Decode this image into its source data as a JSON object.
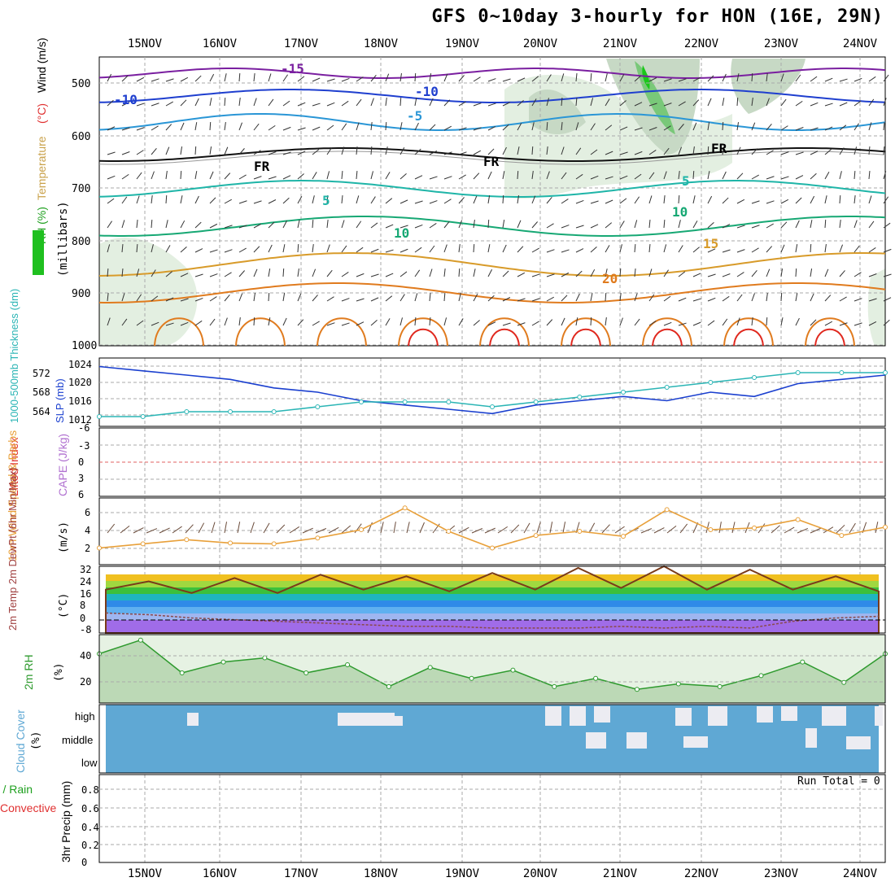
{
  "title": "GFS 0~10day 3-hourly for HON (16E, 29N)",
  "dates": [
    "15NOV",
    "16NOV",
    "17NOV",
    "18NOV",
    "19NOV",
    "20NOV",
    "21NOV",
    "22NOV",
    "23NOV",
    "24NOV"
  ],
  "panels": {
    "upper": {
      "ylabels": [
        {
          "text": "RH (%)",
          "color": "#1fa01f"
        },
        {
          "text": "Temperature",
          "color": "#c9a14a"
        },
        {
          "text": "(°C)",
          "color": "#e03030"
        },
        {
          "text": "Wind (m/s)",
          "color": "#000000"
        }
      ],
      "unit_label": "(millibars)",
      "yticks": [
        "500",
        "600",
        "700",
        "800",
        "900",
        "1000"
      ],
      "contour_labels": [
        "-15",
        "-10",
        "-10",
        "-5",
        "FR",
        "FR",
        "FR",
        "5",
        "5",
        "10",
        "10",
        "15",
        "20"
      ]
    },
    "thickness": {
      "ylabel_left": "1000-500mb Thickness (dm)",
      "ylabel_right": "SLP (mb)",
      "left_ticks": [
        "572",
        "568",
        "564"
      ],
      "right_ticks": [
        "1024",
        "1020",
        "1016",
        "1012"
      ]
    },
    "cape": {
      "ylabel_left": "Lifted Index",
      "ylabel_right": "CAPE (J/kg)",
      "ticks": [
        "-6",
        "-3",
        "0",
        "3",
        "6"
      ]
    },
    "wind10m": {
      "ylabel": "10m Wind Speed & Barbs",
      "unit": "(m/s)",
      "ticks": [
        "6",
        "4",
        "2"
      ]
    },
    "temp2m": {
      "ylabel": "2m Temp 2m DewPt (6hr Min/Max)",
      "unit": "(°C)",
      "ticks": [
        "32",
        "24",
        "16",
        "8",
        "0",
        "-8"
      ]
    },
    "rh2m": {
      "ylabel": "2m RH",
      "unit": "(%)",
      "ticks": [
        "40",
        "20"
      ]
    },
    "cloud": {
      "ylabel": "Cloud Cover",
      "unit": "(%)",
      "levels": [
        "high",
        "middle",
        "low"
      ]
    },
    "precip": {
      "ylabel_left": "Total / Rain",
      "ylabel_left2": "Convective",
      "ylabel": "3hr Precip (mm)",
      "ticks": [
        "0.8",
        "0.6",
        "0.4",
        "0.2",
        "0"
      ],
      "run_total": "Run Total = 0"
    }
  },
  "colors": {
    "slp": "#1a3fcf",
    "thickness": "#2bb5b5",
    "wind10m": "#e8a03a",
    "rh": "#2e9a2e",
    "cloud": "#5fa8d4",
    "grid": "#9a9a9a"
  },
  "chart_data": [
    {
      "type": "line",
      "title": "SLP / 1000-500mb Thickness",
      "x": [
        "15NOV",
        "15.5",
        "16NOV",
        "16.5",
        "17NOV",
        "17.5",
        "18NOV",
        "18.5",
        "19NOV",
        "19.5",
        "20NOV",
        "20.5",
        "21NOV",
        "21.5",
        "22NOV",
        "22.5",
        "23NOV",
        "23.5",
        "24NOV"
      ],
      "series": [
        {
          "name": "SLP (mb)",
          "values": [
            1024,
            1023,
            1022,
            1021,
            1019,
            1018,
            1016,
            1015,
            1014,
            1013,
            1015,
            1016,
            1017,
            1016,
            1018,
            1017,
            1020,
            1021,
            1022
          ]
        },
        {
          "name": "1000-500mb Thickness (dm)",
          "values": [
            563,
            563,
            564,
            564,
            564,
            565,
            566,
            566,
            566,
            565,
            566,
            567,
            568,
            569,
            570,
            571,
            572,
            572,
            572
          ]
        }
      ]
    },
    {
      "type": "line",
      "title": "10m Wind Speed",
      "ylabel": "(m/s)",
      "x": [
        "15NOV",
        "15.5",
        "16NOV",
        "16.5",
        "17NOV",
        "17.5",
        "18NOV",
        "18.5",
        "19NOV",
        "19.5",
        "20NOV",
        "20.5",
        "21NOV",
        "21.5",
        "22NOV",
        "22.5",
        "23NOV",
        "23.5",
        "24NOV"
      ],
      "series": [
        {
          "name": "10m Wind",
          "values": [
            2,
            2.5,
            3,
            2.6,
            2.5,
            3.2,
            4.2,
            6.8,
            4.0,
            2.0,
            3.5,
            4.0,
            3.4,
            6.6,
            4.2,
            4.4,
            5.4,
            3.5,
            4.5
          ]
        }
      ],
      "ylim": [
        0,
        8
      ]
    },
    {
      "type": "area",
      "title": "2m Temp / DewPt",
      "ylabel": "(°C)",
      "x": [
        "15NOV",
        "15.5",
        "16NOV",
        "16.5",
        "17NOV",
        "17.5",
        "18NOV",
        "18.5",
        "19NOV",
        "19.5",
        "20NOV",
        "20.5",
        "21NOV",
        "21.5",
        "22NOV",
        "22.5",
        "23NOV",
        "23.5",
        "24NOV"
      ],
      "series": [
        {
          "name": "2m Temp",
          "values": [
            18,
            23,
            16,
            25,
            16,
            27,
            18,
            26,
            17,
            28,
            18,
            31,
            19,
            32,
            18,
            30,
            18,
            26,
            17
          ]
        },
        {
          "name": "2m DewPt",
          "values": [
            4,
            3,
            1,
            0,
            -1,
            -2,
            -3,
            -4,
            -4,
            -5,
            -5,
            -5,
            -4,
            -5,
            -4,
            -5,
            -1,
            1,
            2
          ]
        }
      ],
      "ylim": [
        -8,
        32
      ]
    },
    {
      "type": "area",
      "title": "2m RH",
      "ylabel": "(%)",
      "x": [
        "15NOV",
        "15.2",
        "15.5",
        "16NOV",
        "16.5",
        "17NOV",
        "17.5",
        "18NOV",
        "18.5",
        "19NOV",
        "19.5",
        "20NOV",
        "20.5",
        "21NOV",
        "21.5",
        "22NOV",
        "22.5",
        "23NOV",
        "23.5",
        "24NOV"
      ],
      "series": [
        {
          "name": "2m RH",
          "values": [
            36,
            46,
            22,
            30,
            33,
            22,
            28,
            12,
            26,
            18,
            24,
            12,
            18,
            10,
            14,
            12,
            20,
            30,
            15,
            36
          ]
        }
      ],
      "ylim": [
        0,
        50
      ]
    },
    {
      "type": "bar",
      "title": "3hr Precip",
      "ylabel": "3hr Precip (mm)",
      "categories": [
        "15NOV",
        "16NOV",
        "17NOV",
        "18NOV",
        "19NOV",
        "20NOV",
        "21NOV",
        "22NOV",
        "23NOV",
        "24NOV"
      ],
      "values": [
        0,
        0,
        0,
        0,
        0,
        0,
        0,
        0,
        0,
        0
      ],
      "ylim": [
        0,
        0.9
      ]
    }
  ]
}
